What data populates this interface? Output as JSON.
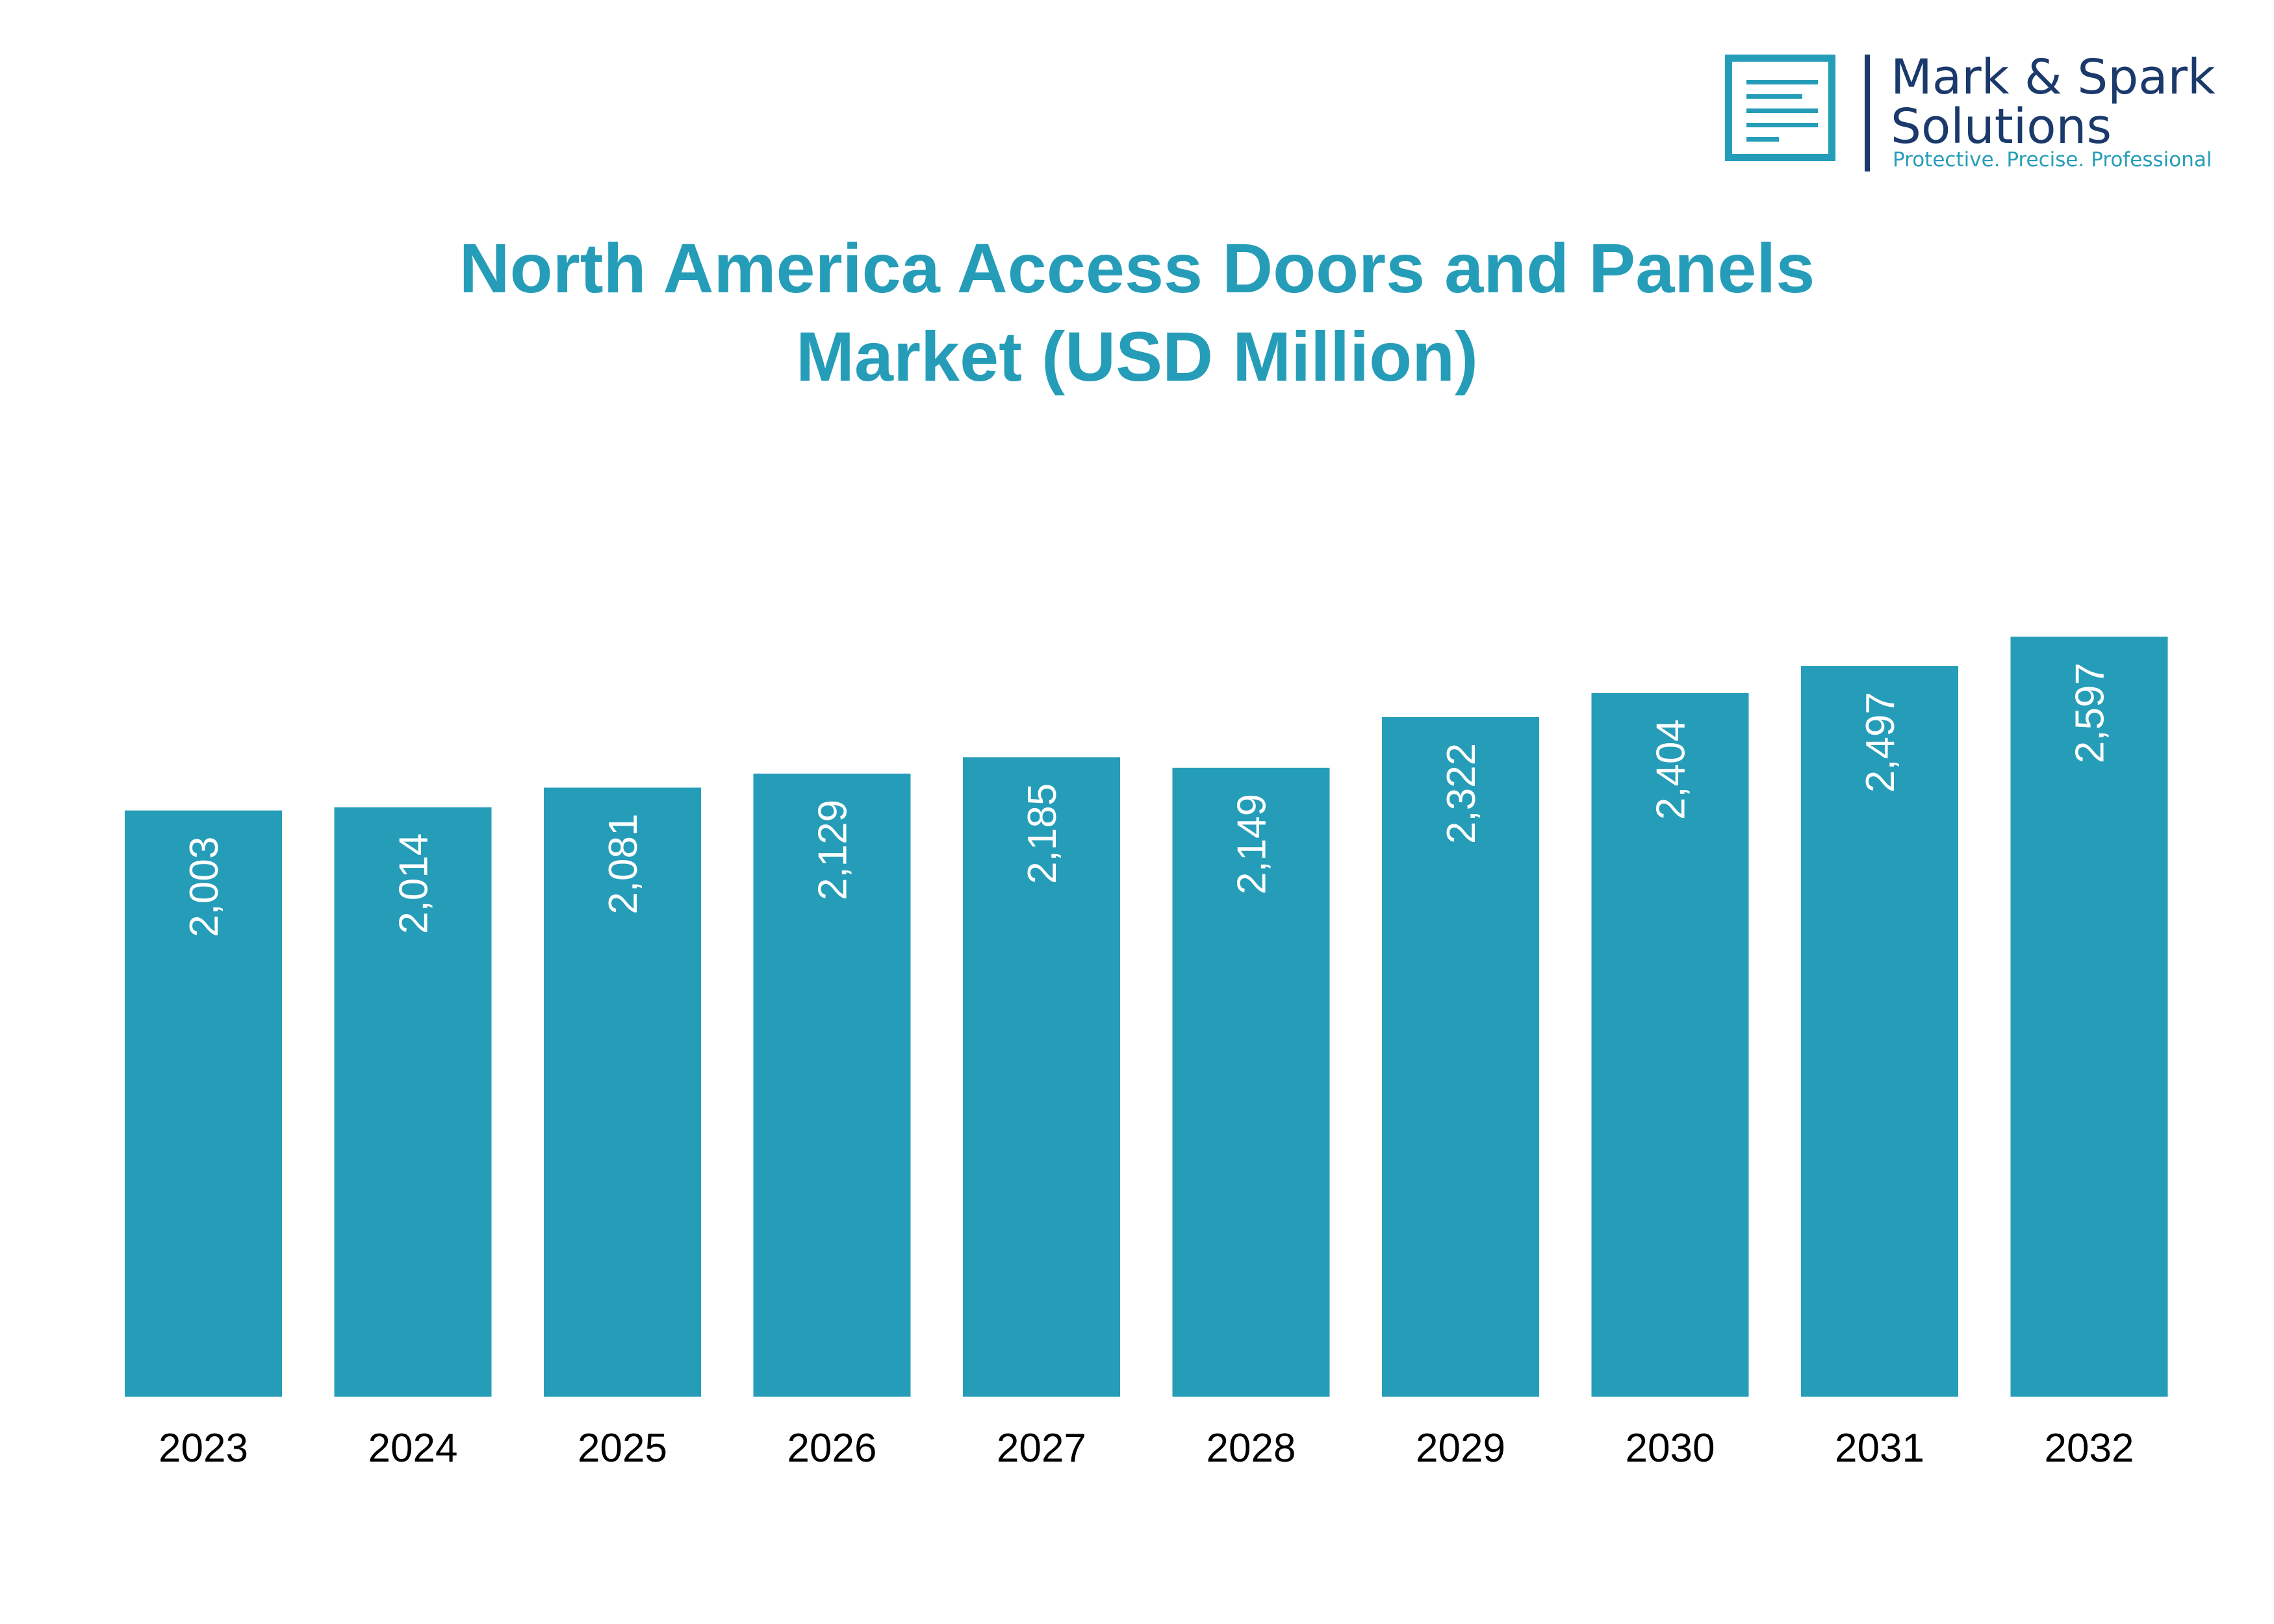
{
  "brand": {
    "name_line1": "Mark & Spark",
    "name_line2": "Solutions",
    "tagline": "Protective. Precise. Professional",
    "accent_color": "#269db8",
    "text_color": "#1b3a6b"
  },
  "chart_data": {
    "type": "bar",
    "title_line1": "North America Access Doors and Panels",
    "title_line2": "Market (USD Million)",
    "categories": [
      "2023",
      "2024",
      "2025",
      "2026",
      "2027",
      "2028",
      "2029",
      "2030",
      "2031",
      "2032"
    ],
    "values": [
      2003,
      2014,
      2081,
      2129,
      2185,
      2149,
      2322,
      2404,
      2497,
      2597
    ],
    "value_labels": [
      "2,003",
      "2,014",
      "2,081",
      "2,129",
      "2,185",
      "2,149",
      "2,322",
      "2,404",
      "2,497",
      "2,597"
    ],
    "bar_color": "#269db8",
    "value_label_orientation": "vertical",
    "grid": false,
    "legend": "none",
    "xlabel": "",
    "ylabel": ""
  }
}
